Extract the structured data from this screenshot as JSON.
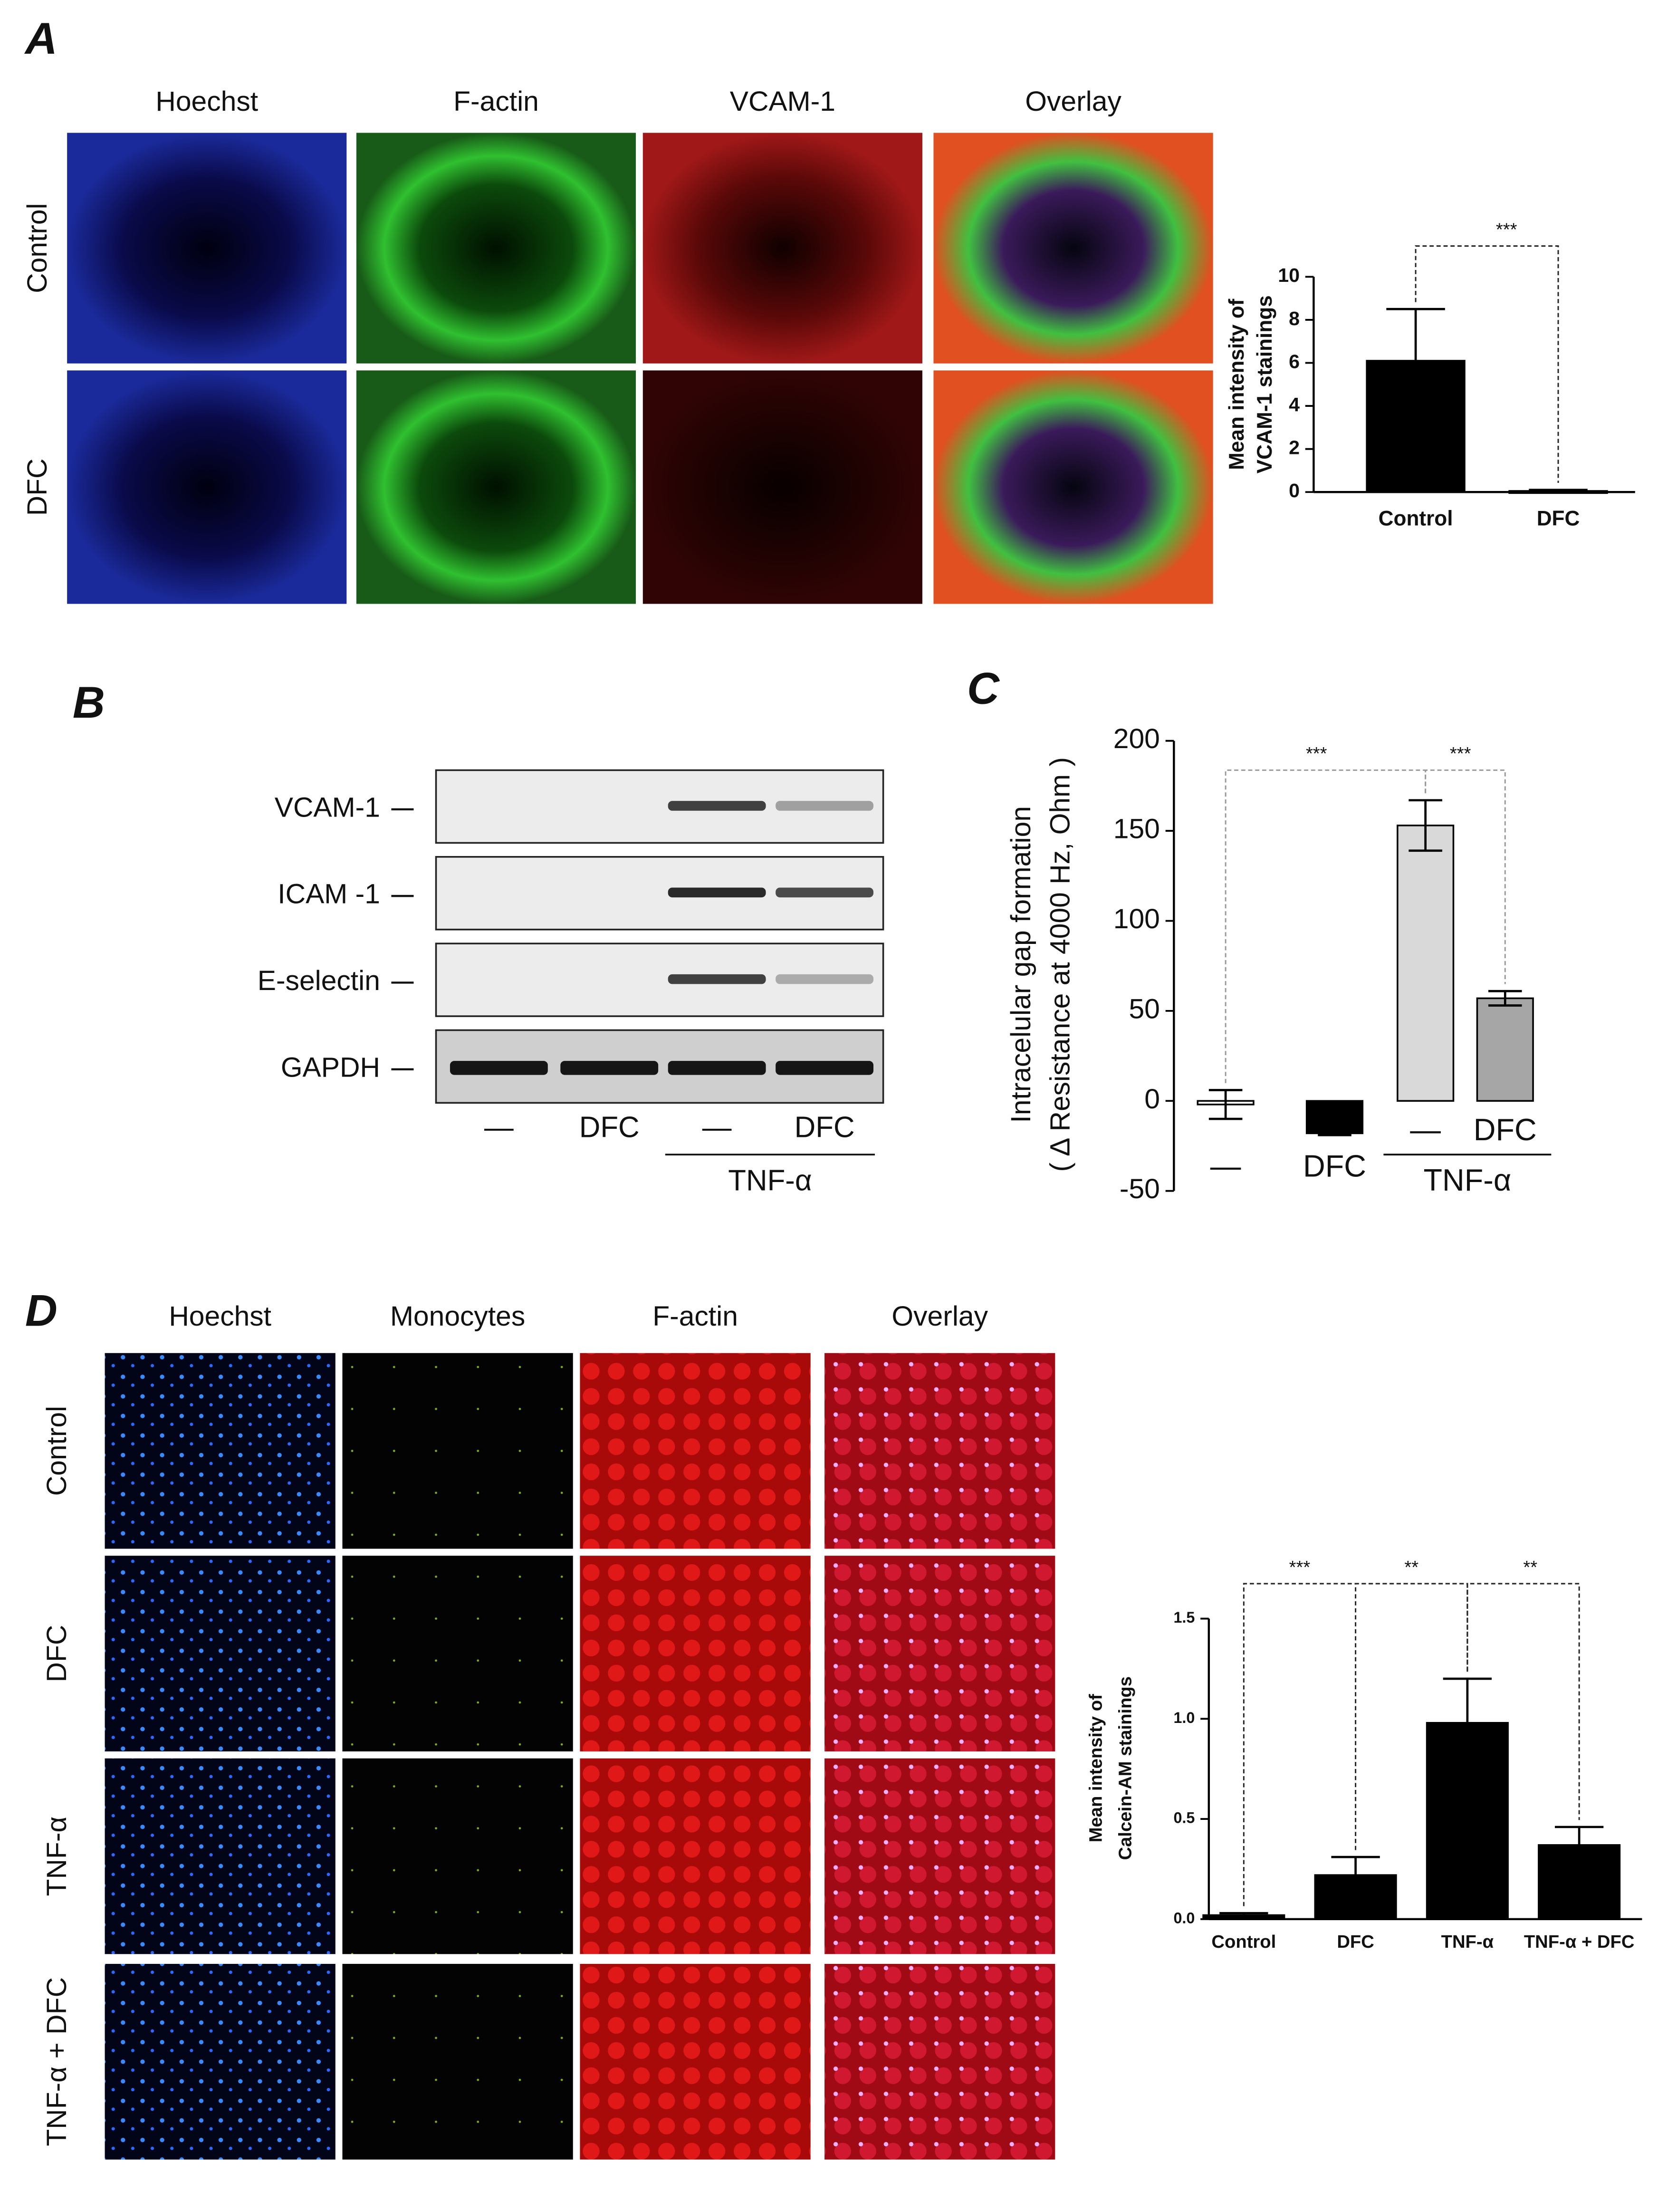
{
  "panel_labels": [
    "A",
    "B",
    "C",
    "D"
  ],
  "panel_a": {
    "columns": [
      "Hoechst",
      "F-actin",
      "VCAM-1",
      "Overlay"
    ],
    "rows": [
      "Control",
      "DFC"
    ]
  },
  "panel_b": {
    "bands": [
      "VCAM-1",
      "ICAM -1",
      "E-selectin",
      "GAPDH"
    ],
    "lanes": [
      "—",
      "DFC",
      "—",
      "DFC"
    ],
    "treatment": "TNF-α"
  },
  "panel_d": {
    "columns": [
      "Hoechst",
      "Monocytes",
      "F-actin",
      "Overlay"
    ],
    "rows": [
      "Control",
      "DFC",
      "TNF-α",
      "TNF-α + DFC"
    ]
  },
  "chart_data": [
    {
      "type": "bar",
      "y_label": [
        "Mean intensity of",
        "VCAM-1 stainings"
      ],
      "categories": [
        "Control",
        "DFC"
      ],
      "values": [
        6.1,
        0.05
      ],
      "errors": [
        2.4,
        0.05
      ],
      "color": "#000000",
      "ylim": [
        0,
        10
      ],
      "yticks": [
        0,
        2,
        4,
        6,
        8,
        10
      ],
      "significance": [
        "***"
      ]
    },
    {
      "type": "bar",
      "y_label": [
        "Intracelular gap formation",
        "( Δ Resistance at 4000 Hz, Ohm )"
      ],
      "categories": [
        "—",
        "DFC",
        "—",
        "DFC"
      ],
      "group_label": "TNF-α",
      "values": [
        -2,
        -18,
        153,
        57
      ],
      "errors": [
        8,
        1,
        14,
        4
      ],
      "colors": [
        "#ffffff",
        "#000000",
        "#d9d9d9",
        "#a6a6a6"
      ],
      "ylim": [
        -50,
        200
      ],
      "yticks": [
        -50,
        0,
        50,
        100,
        150,
        200
      ],
      "significance": [
        "***",
        "***"
      ]
    },
    {
      "type": "bar",
      "y_label": [
        "Mean intensity of",
        "Calcein-AM stainings"
      ],
      "categories": [
        "Control",
        "DFC",
        "TNF-α",
        "TNF-α + DFC"
      ],
      "values": [
        0.02,
        0.22,
        0.98,
        0.37
      ],
      "errors": [
        0.01,
        0.09,
        0.22,
        0.09
      ],
      "color": "#000000",
      "ylim": [
        0,
        1.5
      ],
      "yticks": [
        {
          "value": 0,
          "label": "0.0"
        },
        0.5,
        {
          "value": 1,
          "label": "1.0"
        },
        1.5
      ],
      "significance": [
        "***",
        "**",
        "**"
      ]
    }
  ]
}
